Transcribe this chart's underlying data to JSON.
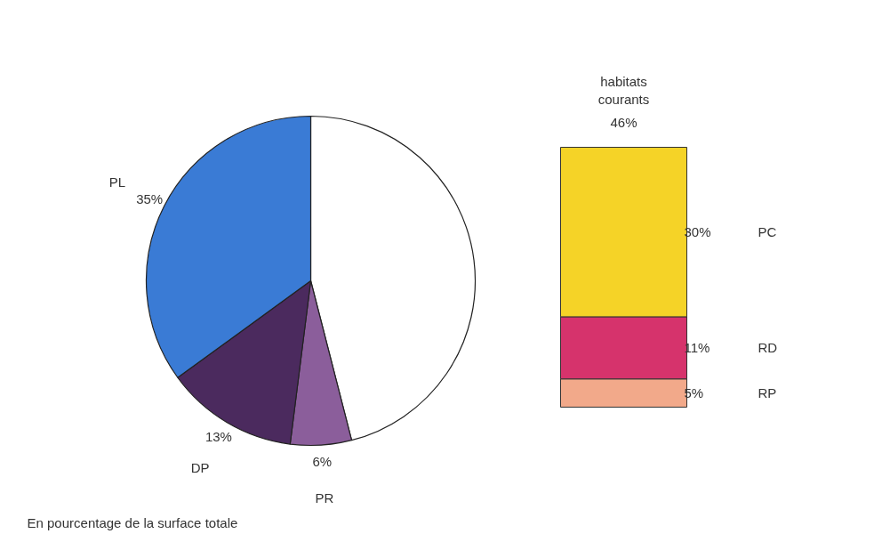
{
  "chart_data": [
    {
      "type": "pie",
      "categories": [
        "habitats courants",
        "PR",
        "DP",
        "PL"
      ],
      "values": [
        46,
        6,
        13,
        35
      ],
      "colors": [
        "#ffffff",
        "#8b5e9b",
        "#4b2a5e",
        "#3a7bd5"
      ],
      "value_labels": [
        "46%",
        "6%",
        "13%",
        "35%"
      ],
      "annotations": [
        "En pourcentage de la surface totale"
      ]
    },
    {
      "type": "bar",
      "stacked": true,
      "categories": [
        null
      ],
      "series": [
        {
          "name": "RP",
          "color": "#f2a98a",
          "values": [
            5
          ],
          "value_labels": [
            "5%"
          ]
        },
        {
          "name": "RD",
          "color": "#d6336c",
          "values": [
            11
          ],
          "value_labels": [
            "11%"
          ]
        },
        {
          "name": "PC",
          "color": "#f5d327",
          "values": [
            30
          ],
          "value_labels": [
            "30%"
          ]
        }
      ]
    }
  ]
}
